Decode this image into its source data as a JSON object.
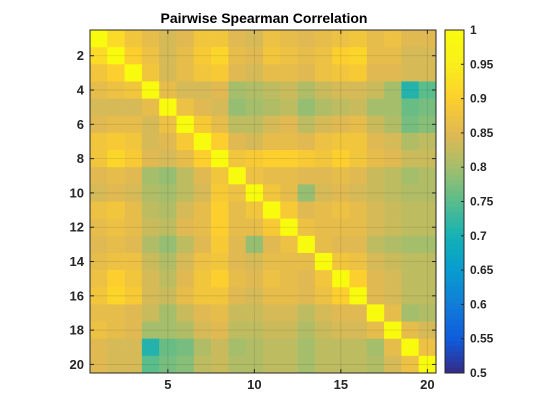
{
  "chart_data": {
    "type": "heatmap",
    "title": "Pairwise Spearman Correlation",
    "xlabel": "",
    "ylabel": "",
    "n": 20,
    "x_ticks": [
      5,
      10,
      15,
      20
    ],
    "y_ticks": [
      2,
      4,
      6,
      8,
      10,
      12,
      14,
      16,
      18,
      20
    ],
    "clim": [
      0.5,
      1
    ],
    "colorbar_ticks": [
      "0.5",
      "0.55",
      "0.6",
      "0.65",
      "0.7",
      "0.75",
      "0.8",
      "0.85",
      "0.9",
      "0.95",
      "1"
    ],
    "colormap": "parula",
    "grid": true,
    "values": [
      [
        1.0,
        0.92,
        0.88,
        0.86,
        0.84,
        0.85,
        0.88,
        0.88,
        0.85,
        0.84,
        0.87,
        0.86,
        0.85,
        0.86,
        0.87,
        0.88,
        0.86,
        0.87,
        0.85,
        0.85
      ],
      [
        0.92,
        1.0,
        0.9,
        0.87,
        0.84,
        0.86,
        0.89,
        0.91,
        0.86,
        0.85,
        0.88,
        0.87,
        0.86,
        0.87,
        0.9,
        0.91,
        0.86,
        0.86,
        0.84,
        0.84
      ],
      [
        0.88,
        0.9,
        1.0,
        0.88,
        0.84,
        0.86,
        0.88,
        0.89,
        0.85,
        0.84,
        0.86,
        0.86,
        0.85,
        0.87,
        0.88,
        0.89,
        0.85,
        0.85,
        0.84,
        0.84
      ],
      [
        0.86,
        0.87,
        0.88,
        1.0,
        0.86,
        0.84,
        0.84,
        0.85,
        0.8,
        0.81,
        0.82,
        0.83,
        0.81,
        0.83,
        0.84,
        0.84,
        0.83,
        0.8,
        0.71,
        0.75
      ],
      [
        0.84,
        0.84,
        0.84,
        0.86,
        1.0,
        0.87,
        0.85,
        0.84,
        0.79,
        0.8,
        0.81,
        0.82,
        0.79,
        0.81,
        0.82,
        0.83,
        0.8,
        0.8,
        0.76,
        0.77
      ],
      [
        0.85,
        0.86,
        0.86,
        0.84,
        0.87,
        1.0,
        0.89,
        0.86,
        0.82,
        0.82,
        0.84,
        0.85,
        0.82,
        0.84,
        0.85,
        0.86,
        0.83,
        0.81,
        0.77,
        0.78
      ],
      [
        0.88,
        0.89,
        0.88,
        0.84,
        0.85,
        0.89,
        1.0,
        0.9,
        0.85,
        0.84,
        0.86,
        0.86,
        0.85,
        0.87,
        0.88,
        0.88,
        0.85,
        0.84,
        0.81,
        0.82
      ],
      [
        0.88,
        0.91,
        0.89,
        0.85,
        0.84,
        0.86,
        0.9,
        1.0,
        0.88,
        0.89,
        0.9,
        0.9,
        0.89,
        0.88,
        0.9,
        0.88,
        0.86,
        0.85,
        0.83,
        0.83
      ],
      [
        0.85,
        0.86,
        0.85,
        0.8,
        0.79,
        0.82,
        0.85,
        0.88,
        1.0,
        0.87,
        0.86,
        0.86,
        0.85,
        0.85,
        0.86,
        0.85,
        0.83,
        0.82,
        0.8,
        0.81
      ],
      [
        0.84,
        0.85,
        0.84,
        0.81,
        0.8,
        0.82,
        0.84,
        0.89,
        0.87,
        1.0,
        0.88,
        0.86,
        0.79,
        0.84,
        0.85,
        0.84,
        0.83,
        0.82,
        0.81,
        0.81
      ],
      [
        0.87,
        0.88,
        0.86,
        0.82,
        0.81,
        0.84,
        0.86,
        0.9,
        0.86,
        0.88,
        1.0,
        0.89,
        0.85,
        0.86,
        0.87,
        0.86,
        0.84,
        0.83,
        0.82,
        0.82
      ],
      [
        0.86,
        0.87,
        0.86,
        0.83,
        0.82,
        0.85,
        0.86,
        0.9,
        0.86,
        0.86,
        0.89,
        1.0,
        0.87,
        0.86,
        0.86,
        0.86,
        0.84,
        0.83,
        0.82,
        0.82
      ],
      [
        0.85,
        0.86,
        0.85,
        0.81,
        0.79,
        0.82,
        0.85,
        0.89,
        0.85,
        0.79,
        0.85,
        0.87,
        1.0,
        0.86,
        0.85,
        0.85,
        0.82,
        0.81,
        0.8,
        0.8
      ],
      [
        0.86,
        0.87,
        0.87,
        0.83,
        0.81,
        0.84,
        0.87,
        0.88,
        0.85,
        0.84,
        0.86,
        0.86,
        0.86,
        1.0,
        0.88,
        0.87,
        0.84,
        0.83,
        0.82,
        0.82
      ],
      [
        0.87,
        0.9,
        0.88,
        0.84,
        0.82,
        0.85,
        0.88,
        0.9,
        0.86,
        0.85,
        0.87,
        0.86,
        0.85,
        0.88,
        1.0,
        0.9,
        0.85,
        0.84,
        0.82,
        0.82
      ],
      [
        0.88,
        0.91,
        0.89,
        0.84,
        0.83,
        0.86,
        0.88,
        0.88,
        0.85,
        0.84,
        0.86,
        0.86,
        0.85,
        0.87,
        0.9,
        1.0,
        0.85,
        0.84,
        0.82,
        0.82
      ],
      [
        0.86,
        0.86,
        0.85,
        0.83,
        0.8,
        0.83,
        0.85,
        0.86,
        0.83,
        0.83,
        0.84,
        0.84,
        0.82,
        0.84,
        0.85,
        0.85,
        1.0,
        0.86,
        0.8,
        0.81
      ],
      [
        0.87,
        0.86,
        0.85,
        0.8,
        0.8,
        0.81,
        0.84,
        0.85,
        0.82,
        0.82,
        0.83,
        0.83,
        0.81,
        0.83,
        0.84,
        0.84,
        0.86,
        1.0,
        0.86,
        0.84
      ],
      [
        0.85,
        0.84,
        0.84,
        0.71,
        0.76,
        0.77,
        0.81,
        0.83,
        0.8,
        0.81,
        0.82,
        0.82,
        0.8,
        0.82,
        0.82,
        0.82,
        0.8,
        0.86,
        1.0,
        0.87
      ],
      [
        0.85,
        0.84,
        0.84,
        0.75,
        0.77,
        0.78,
        0.82,
        0.83,
        0.81,
        0.81,
        0.82,
        0.82,
        0.8,
        0.82,
        0.82,
        0.82,
        0.81,
        0.84,
        0.87,
        1.0
      ]
    ]
  }
}
